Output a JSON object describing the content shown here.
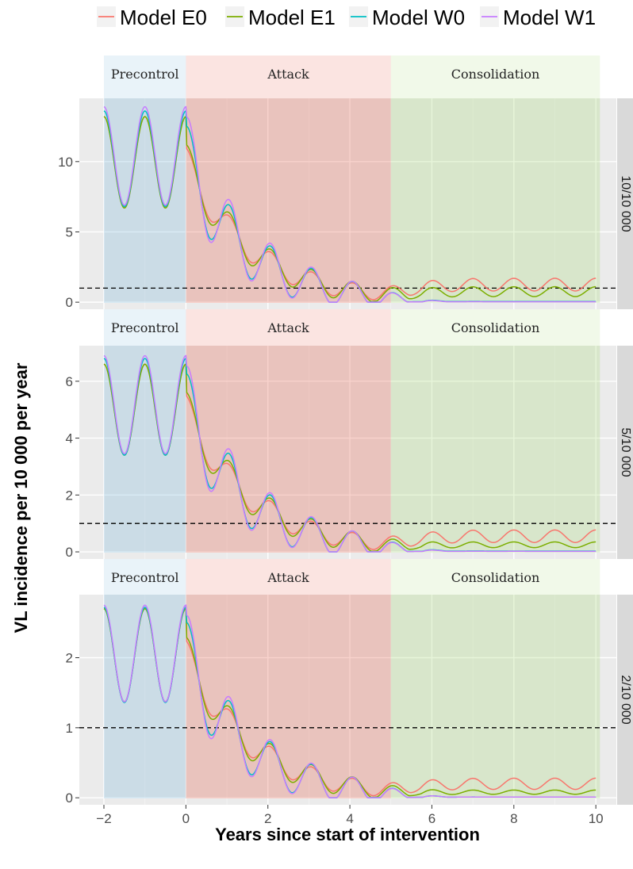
{
  "chart_data": {
    "type": "line",
    "xlabel": "Years since start of intervention",
    "ylabel": "VL incidence per 10 000 per year",
    "xlim": [
      -2.6,
      10.5
    ],
    "xticks": [
      -2,
      0,
      2,
      4,
      6,
      8,
      10
    ],
    "xtick_labels": [
      "−2",
      "0",
      "2",
      "4",
      "6",
      "8",
      "10"
    ],
    "legend_position": "top",
    "threshold": 1,
    "colors": {
      "Model E0": "#F8766D",
      "Model E1": "#7CAE00",
      "Model W0": "#00BFC4",
      "Model W1": "#C77CFF",
      "precontrol": "#6BAED6",
      "attack": "#E34A33",
      "consolidation": "#A1D76A",
      "panel_bg": "#EBEBEB",
      "strip_bg": "#D9D9D9"
    },
    "legend": [
      {
        "name": "Model E0",
        "color": "#F8766D"
      },
      {
        "name": "Model E1",
        "color": "#7CAE00"
      },
      {
        "name": "Model W0",
        "color": "#00BFC4"
      },
      {
        "name": "Model W1",
        "color": "#C77CFF"
      }
    ],
    "phases": [
      {
        "name": "Precontrol",
        "start": -2,
        "end": 0
      },
      {
        "name": "Attack",
        "start": 0,
        "end": 5
      },
      {
        "name": "Consolidation",
        "start": 5,
        "end": 10.1
      }
    ],
    "panels": [
      {
        "strip": "10/10 000",
        "ylim": [
          -0.5,
          14.5
        ],
        "yticks": [
          0,
          5,
          10
        ],
        "ytick_labels": [
          "0",
          "5",
          "10"
        ],
        "series": [
          {
            "name": "Model E0",
            "peak": 13.2,
            "floor": 6.7,
            "a": 0.62,
            "l": 0.35,
            "b": 0.18,
            "f": 0.0,
            "oa": 0.3,
            "ob": 0.06,
            "lateAmp": 0.45,
            "lateBase": 1.25
          },
          {
            "name": "Model E1",
            "peak": 13.2,
            "floor": 6.7,
            "a": 0.62,
            "l": 0.35,
            "b": 0.18,
            "f": 0.0,
            "oa": 0.35,
            "ob": 0.1,
            "lateAmp": 0.35,
            "lateBase": 0.75
          },
          {
            "name": "Model W0",
            "peak": 13.6,
            "floor": 6.8,
            "a": 0.69,
            "l": 0.4,
            "b": 0.26,
            "f": 0.0,
            "oa": 0.4,
            "ob": 0.38,
            "lateAmp": 0.0,
            "lateBase": 0.05
          },
          {
            "name": "Model W1",
            "peak": 13.9,
            "floor": 6.9,
            "a": 0.69,
            "l": 0.4,
            "b": 0.3,
            "f": 0.0,
            "oa": 0.4,
            "ob": 0.5,
            "lateAmp": 0.0,
            "lateBase": 0.03
          }
        ]
      },
      {
        "strip": "5/10 000",
        "ylim": [
          -0.25,
          7.25
        ],
        "yticks": [
          0,
          2,
          4,
          6
        ],
        "ytick_labels": [
          "0",
          "2",
          "4",
          "6"
        ],
        "series": [
          {
            "name": "Model E0",
            "peak": 6.6,
            "floor": 3.4,
            "a": 0.62,
            "l": 0.35,
            "b": 0.18,
            "f": 0.0,
            "oa": 0.3,
            "ob": 0.06,
            "lateAmp": 0.22,
            "lateBase": 0.55
          },
          {
            "name": "Model E1",
            "peak": 6.6,
            "floor": 3.4,
            "a": 0.62,
            "l": 0.35,
            "b": 0.18,
            "f": 0.0,
            "oa": 0.35,
            "ob": 0.1,
            "lateAmp": 0.1,
            "lateBase": 0.25
          },
          {
            "name": "Model W0",
            "peak": 6.8,
            "floor": 3.4,
            "a": 0.69,
            "l": 0.4,
            "b": 0.26,
            "f": 0.0,
            "oa": 0.4,
            "ob": 0.38,
            "lateAmp": 0.0,
            "lateBase": 0.03
          },
          {
            "name": "Model W1",
            "peak": 6.9,
            "floor": 3.45,
            "a": 0.69,
            "l": 0.4,
            "b": 0.3,
            "f": 0.0,
            "oa": 0.4,
            "ob": 0.5,
            "lateAmp": 0.0,
            "lateBase": 0.02
          }
        ]
      },
      {
        "strip": "2/10 000",
        "ylim": [
          -0.1,
          2.9
        ],
        "yticks": [
          0,
          1,
          2
        ],
        "ytick_labels": [
          "0",
          "1",
          "2"
        ],
        "series": [
          {
            "name": "Model E0",
            "peak": 2.7,
            "floor": 1.37,
            "a": 0.62,
            "l": 0.35,
            "b": 0.18,
            "f": 0.0,
            "oa": 0.3,
            "ob": 0.06,
            "lateAmp": 0.08,
            "lateBase": 0.2
          },
          {
            "name": "Model E1",
            "peak": 2.7,
            "floor": 1.37,
            "a": 0.62,
            "l": 0.35,
            "b": 0.18,
            "f": 0.0,
            "oa": 0.35,
            "ob": 0.1,
            "lateAmp": 0.03,
            "lateBase": 0.08
          },
          {
            "name": "Model W0",
            "peak": 2.72,
            "floor": 1.36,
            "a": 0.69,
            "l": 0.4,
            "b": 0.26,
            "f": 0.0,
            "oa": 0.4,
            "ob": 0.38,
            "lateAmp": 0.0,
            "lateBase": 0.01
          },
          {
            "name": "Model W1",
            "peak": 2.75,
            "floor": 1.37,
            "a": 0.69,
            "l": 0.4,
            "b": 0.3,
            "f": 0.0,
            "oa": 0.4,
            "ob": 0.5,
            "lateAmp": 0.0,
            "lateBase": 0.01
          }
        ]
      }
    ]
  }
}
